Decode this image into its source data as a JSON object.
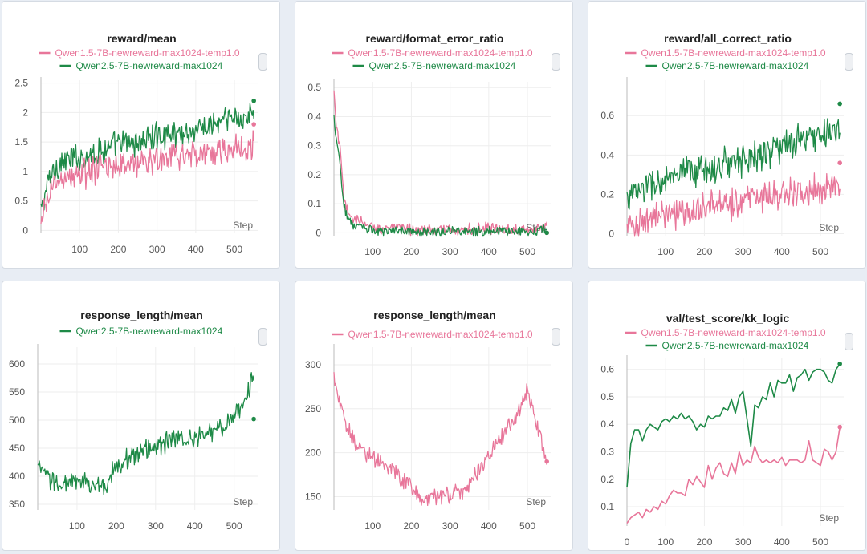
{
  "colors": {
    "qwen15": "#e8769a",
    "qwen25": "#1e8a47",
    "grid": "#eeeeee",
    "axis": "#bbbbbb"
  },
  "series_names": {
    "qwen15": "Qwen1.5-7B-newreward-max1024-temp1.0",
    "qwen25": "Qwen2.5-7B-newreward-max1024"
  },
  "chart_data": [
    {
      "id": "reward-mean",
      "type": "line",
      "title": "reward/mean",
      "xlabel": "Step",
      "xticks": [
        100,
        200,
        300,
        400,
        500
      ],
      "xlim": [
        0,
        560
      ],
      "yticks": [
        0,
        0.5,
        1,
        1.5,
        2,
        2.5
      ],
      "ytick_labels": [
        "0",
        "0.5",
        "1",
        "1.5",
        "2",
        "2.5"
      ],
      "ylim": [
        -0.05,
        2.55
      ],
      "legend": [
        "qwen15",
        "qwen25"
      ],
      "series": [
        {
          "key": "qwen25",
          "name": "Qwen2.5-7B-newreward-max1024",
          "noisy": true,
          "amp": 0.28,
          "x": [
            0,
            10,
            25,
            50,
            100,
            150,
            200,
            250,
            300,
            350,
            400,
            450,
            500,
            550
          ],
          "y": [
            0.3,
            0.6,
            0.95,
            1.15,
            1.25,
            1.35,
            1.45,
            1.5,
            1.6,
            1.65,
            1.7,
            1.8,
            1.9,
            1.95
          ],
          "end_marker": 2.2
        },
        {
          "key": "qwen15",
          "name": "Qwen1.5-7B-newreward-max1024-temp1.0",
          "noisy": true,
          "amp": 0.3,
          "x": [
            0,
            10,
            25,
            50,
            100,
            150,
            200,
            250,
            300,
            350,
            400,
            450,
            500,
            550
          ],
          "y": [
            0.0,
            0.35,
            0.7,
            0.85,
            0.95,
            1.05,
            1.1,
            1.15,
            1.2,
            1.25,
            1.3,
            1.35,
            1.4,
            1.45
          ],
          "end_marker": 1.8
        }
      ]
    },
    {
      "id": "reward-format-error-ratio",
      "type": "line",
      "title": "reward/format_error_ratio",
      "xlabel": "Step",
      "xticks": [
        100,
        200,
        300,
        400,
        500
      ],
      "xlim": [
        0,
        560
      ],
      "yticks": [
        0,
        0.1,
        0.2,
        0.3,
        0.4,
        0.5
      ],
      "ytick_labels": [
        "0",
        "0.1",
        "0.2",
        "0.3",
        "0.4",
        "0.5"
      ],
      "ylim": [
        -0.01,
        0.52
      ],
      "legend": [
        "qwen15",
        "qwen25"
      ],
      "series": [
        {
          "key": "qwen15",
          "name": "Qwen1.5-7B-newreward-max1024-temp1.0",
          "noisy": true,
          "amp": 0.025,
          "x": [
            0,
            5,
            15,
            25,
            35,
            50,
            70,
            100,
            200,
            300,
            400,
            500,
            550
          ],
          "y": [
            0.48,
            0.38,
            0.3,
            0.12,
            0.07,
            0.05,
            0.035,
            0.02,
            0.012,
            0.01,
            0.012,
            0.015,
            0.018
          ],
          "end_marker": 0.0
        },
        {
          "key": "qwen25",
          "name": "Qwen2.5-7B-newreward-max1024",
          "noisy": true,
          "amp": 0.02,
          "x": [
            0,
            5,
            15,
            25,
            35,
            50,
            70,
            100,
            200,
            300,
            400,
            500,
            550
          ],
          "y": [
            0.4,
            0.34,
            0.25,
            0.1,
            0.05,
            0.03,
            0.015,
            0.008,
            0.004,
            0.004,
            0.005,
            0.006,
            0.01
          ],
          "end_marker": 0.0
        }
      ]
    },
    {
      "id": "reward-all-correct-ratio",
      "type": "line",
      "title": "reward/all_correct_ratio",
      "xlabel": "Step",
      "xticks": [
        100,
        200,
        300,
        400,
        500
      ],
      "xlim": [
        0,
        560
      ],
      "yticks": [
        0,
        0.2,
        0.4,
        0.6
      ],
      "ytick_labels": [
        "0",
        "0.2",
        "0.4",
        "0.6"
      ],
      "ylim": [
        -0.01,
        0.78
      ],
      "legend": [
        "qwen15",
        "qwen25"
      ],
      "series": [
        {
          "key": "qwen25",
          "name": "Qwen2.5-7B-newreward-max1024",
          "noisy": true,
          "amp": 0.1,
          "x": [
            0,
            50,
            100,
            150,
            200,
            250,
            300,
            350,
            400,
            450,
            500,
            550
          ],
          "y": [
            0.18,
            0.24,
            0.27,
            0.3,
            0.33,
            0.35,
            0.38,
            0.41,
            0.44,
            0.47,
            0.5,
            0.53
          ],
          "end_marker": 0.66
        },
        {
          "key": "qwen15",
          "name": "Qwen1.5-7B-newreward-max1024-temp1.0",
          "noisy": true,
          "amp": 0.1,
          "x": [
            0,
            50,
            100,
            150,
            200,
            250,
            300,
            350,
            400,
            450,
            500,
            550
          ],
          "y": [
            0.03,
            0.07,
            0.09,
            0.11,
            0.13,
            0.15,
            0.17,
            0.19,
            0.2,
            0.22,
            0.24,
            0.26
          ],
          "end_marker": 0.36
        }
      ]
    },
    {
      "id": "response-length-mean-qwen25",
      "type": "line",
      "title": "response_length/mean",
      "xlabel": "Step",
      "xticks": [
        100,
        200,
        300,
        400,
        500
      ],
      "xlim": [
        0,
        560
      ],
      "yticks": [
        350,
        400,
        450,
        500,
        550,
        600
      ],
      "ytick_labels": [
        "350",
        "400",
        "450",
        "500",
        "550",
        "600"
      ],
      "ylim": [
        340,
        630
      ],
      "legend": [
        "qwen25"
      ],
      "series": [
        {
          "key": "qwen25",
          "name": "Qwen2.5-7B-newreward-max1024",
          "noisy": true,
          "amp": 22,
          "x": [
            0,
            30,
            60,
            100,
            140,
            170,
            200,
            250,
            300,
            350,
            400,
            450,
            500,
            530,
            550
          ],
          "y": [
            415,
            395,
            385,
            390,
            385,
            380,
            420,
            440,
            455,
            465,
            470,
            480,
            505,
            540,
            580
          ],
          "end_marker": 502
        }
      ]
    },
    {
      "id": "response-length-mean-qwen15",
      "type": "line",
      "title": "response_length/mean",
      "xlabel": "Step",
      "xticks": [
        100,
        200,
        300,
        400,
        500
      ],
      "xlim": [
        0,
        560
      ],
      "yticks": [
        150,
        200,
        250,
        300
      ],
      "ytick_labels": [
        "150",
        "200",
        "250",
        "300"
      ],
      "ylim": [
        135,
        320
      ],
      "legend": [
        "qwen15"
      ],
      "series": [
        {
          "key": "qwen15",
          "name": "Qwen1.5-7B-newreward-max1024-temp1.0",
          "noisy": true,
          "amp": 12,
          "x": [
            0,
            10,
            30,
            60,
            100,
            150,
            200,
            230,
            280,
            330,
            380,
            420,
            470,
            500,
            520,
            550
          ],
          "y": [
            290,
            265,
            230,
            210,
            195,
            180,
            160,
            148,
            150,
            155,
            185,
            210,
            240,
            270,
            240,
            195
          ],
          "end_marker": 190
        }
      ]
    },
    {
      "id": "val-test-score-kk-logic",
      "type": "line",
      "title": "val/test_score/kk_logic",
      "xlabel": "Step",
      "xticks": [
        0,
        100,
        200,
        300,
        400,
        500
      ],
      "xlim": [
        0,
        560
      ],
      "yticks": [
        0.1,
        0.2,
        0.3,
        0.4,
        0.5,
        0.6
      ],
      "ytick_labels": [
        "0.1",
        "0.2",
        "0.3",
        "0.4",
        "0.5",
        "0.6"
      ],
      "ylim": [
        0.03,
        0.64
      ],
      "legend": [
        "qwen15",
        "qwen25"
      ],
      "series": [
        {
          "key": "qwen25",
          "name": "Qwen2.5-7B-newreward-max1024",
          "noisy": false,
          "x": [
            0,
            10,
            20,
            30,
            40,
            50,
            60,
            70,
            80,
            90,
            100,
            110,
            120,
            130,
            140,
            150,
            160,
            170,
            180,
            190,
            200,
            210,
            220,
            230,
            240,
            250,
            260,
            270,
            280,
            290,
            300,
            310,
            320,
            330,
            340,
            350,
            360,
            370,
            380,
            390,
            400,
            410,
            420,
            430,
            440,
            450,
            460,
            470,
            480,
            490,
            500,
            510,
            520,
            530,
            540,
            550
          ],
          "y": [
            0.17,
            0.33,
            0.38,
            0.38,
            0.34,
            0.38,
            0.4,
            0.39,
            0.38,
            0.41,
            0.42,
            0.41,
            0.43,
            0.42,
            0.44,
            0.42,
            0.43,
            0.41,
            0.38,
            0.4,
            0.39,
            0.43,
            0.42,
            0.43,
            0.43,
            0.46,
            0.45,
            0.49,
            0.44,
            0.5,
            0.52,
            0.42,
            0.32,
            0.47,
            0.46,
            0.5,
            0.49,
            0.55,
            0.5,
            0.56,
            0.55,
            0.55,
            0.58,
            0.52,
            0.57,
            0.58,
            0.6,
            0.56,
            0.59,
            0.6,
            0.6,
            0.59,
            0.56,
            0.55,
            0.6,
            0.62
          ],
          "end_marker": 0.62
        },
        {
          "key": "qwen15",
          "name": "Qwen1.5-7B-newreward-max1024-temp1.0",
          "noisy": false,
          "x": [
            0,
            10,
            20,
            30,
            40,
            50,
            60,
            70,
            80,
            90,
            100,
            110,
            120,
            130,
            140,
            150,
            160,
            170,
            180,
            190,
            200,
            210,
            220,
            230,
            240,
            250,
            260,
            270,
            280,
            290,
            300,
            310,
            320,
            330,
            340,
            350,
            360,
            370,
            380,
            390,
            400,
            410,
            420,
            430,
            440,
            450,
            460,
            470,
            480,
            490,
            500,
            510,
            520,
            530,
            540,
            550
          ],
          "y": [
            0.04,
            0.06,
            0.07,
            0.08,
            0.06,
            0.09,
            0.08,
            0.1,
            0.09,
            0.12,
            0.11,
            0.14,
            0.16,
            0.15,
            0.15,
            0.14,
            0.2,
            0.18,
            0.21,
            0.19,
            0.17,
            0.25,
            0.2,
            0.24,
            0.26,
            0.22,
            0.21,
            0.26,
            0.22,
            0.3,
            0.25,
            0.27,
            0.26,
            0.32,
            0.28,
            0.26,
            0.27,
            0.26,
            0.27,
            0.26,
            0.28,
            0.25,
            0.27,
            0.27,
            0.27,
            0.26,
            0.27,
            0.34,
            0.27,
            0.26,
            0.25,
            0.31,
            0.3,
            0.27,
            0.3,
            0.39
          ],
          "end_marker": 0.39
        }
      ]
    }
  ]
}
